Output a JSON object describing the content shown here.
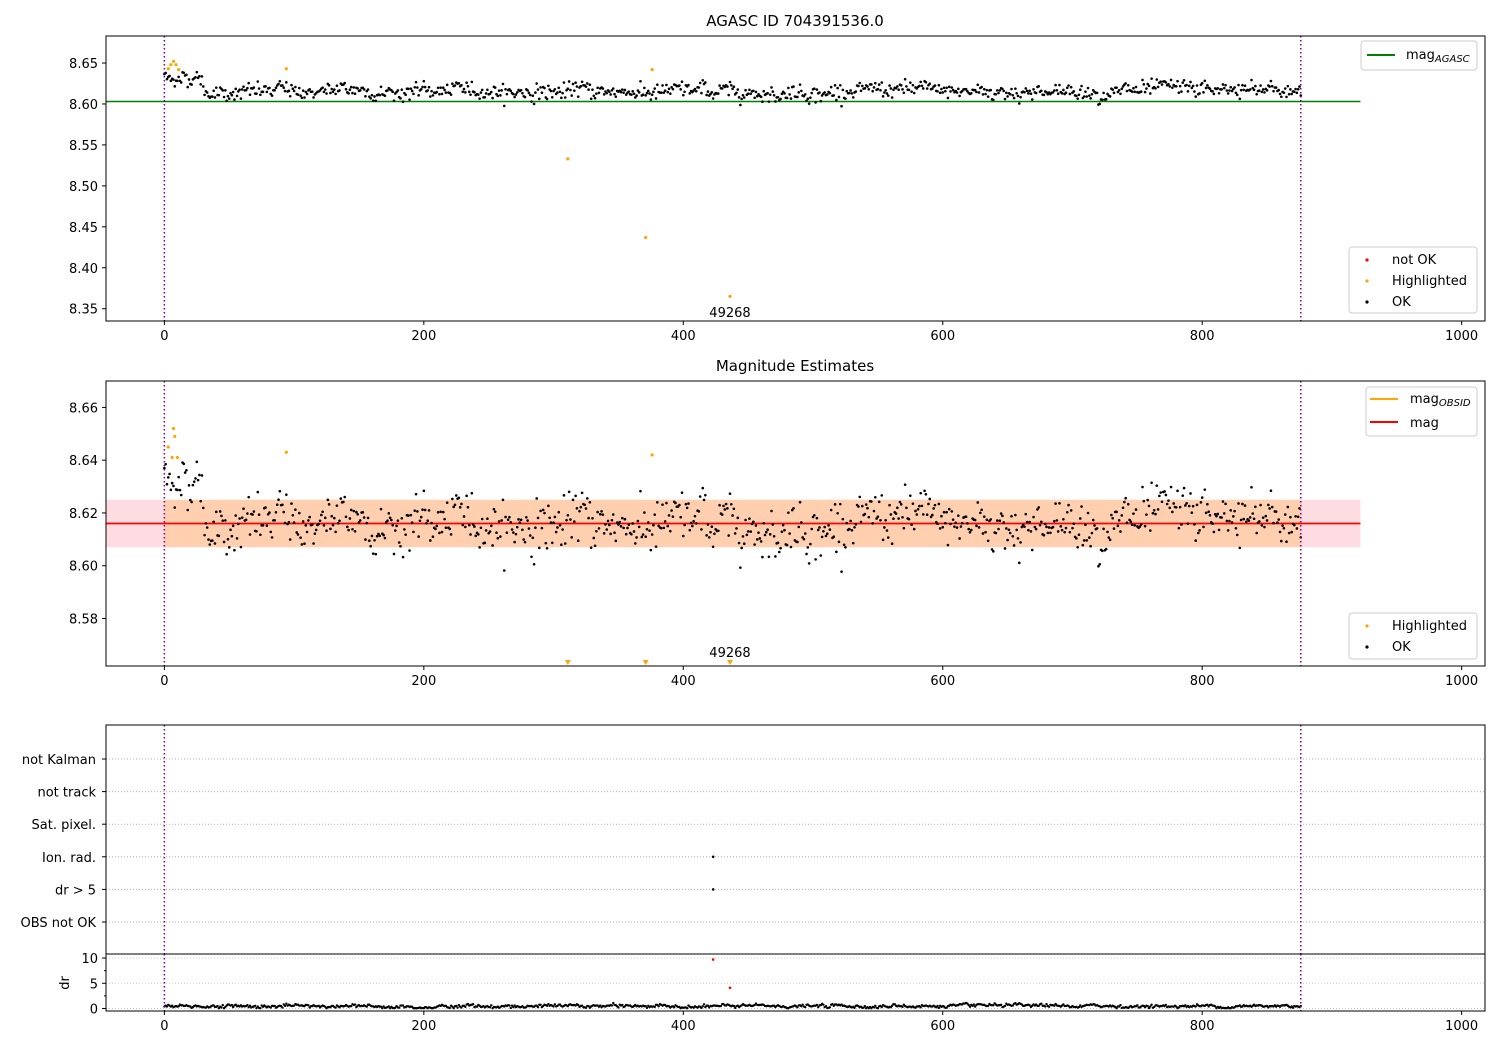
{
  "chart_data": [
    {
      "type": "scatter",
      "title": "AGASC ID 704391536.0",
      "xlim": [
        -45,
        1018
      ],
      "ylim": [
        8.335,
        8.683
      ],
      "xticks": [
        0,
        200,
        400,
        600,
        800,
        1000
      ],
      "yticks": [
        8.35,
        8.4,
        8.45,
        8.5,
        8.55,
        8.6,
        8.65
      ],
      "xticks_labels": [
        "0",
        "200",
        "400",
        "600",
        "800",
        "1000"
      ],
      "yticks_labels": [
        "8.35",
        "8.40",
        "8.45",
        "8.50",
        "8.55",
        "8.60",
        "8.65"
      ],
      "vlines": [
        0,
        876
      ],
      "hlines": [
        {
          "name": "mag_AGASC",
          "y": 8.603,
          "x": [
            -45,
            922
          ],
          "color": "#008000"
        }
      ],
      "ok_points": {
        "x_range": [
          0,
          876
        ],
        "mean": 8.615,
        "color": "#000000"
      },
      "highlighted": [
        {
          "x": 3,
          "y": 8.643
        },
        {
          "x": 5,
          "y": 8.648
        },
        {
          "x": 7,
          "y": 8.652
        },
        {
          "x": 9,
          "y": 8.648
        },
        {
          "x": 11,
          "y": 8.642
        },
        {
          "x": 94,
          "y": 8.643
        },
        {
          "x": 311,
          "y": 8.533
        },
        {
          "x": 371,
          "y": 8.437
        },
        {
          "x": 376,
          "y": 8.642
        },
        {
          "x": 436,
          "y": 8.365
        }
      ],
      "annotation": {
        "text": "49268",
        "x": 436,
        "y": 8.345
      },
      "legends": [
        {
          "position": "upper right",
          "entries": [
            {
              "label": "mag",
              "sub": "AGASC",
              "color": "#008000",
              "marker": "line"
            }
          ]
        },
        {
          "position": "lower right",
          "entries": [
            {
              "label": "not OK",
              "color": "#ff0000",
              "marker": "dot"
            },
            {
              "label": "Highlighted",
              "color": "#ffa500",
              "marker": "dot"
            },
            {
              "label": "OK",
              "color": "#000000",
              "marker": "dot"
            }
          ]
        }
      ]
    },
    {
      "type": "scatter",
      "title": "Magnitude Estimates",
      "xlim": [
        -45,
        1018
      ],
      "ylim": [
        8.562,
        8.67
      ],
      "xticks": [
        0,
        200,
        400,
        600,
        800,
        1000
      ],
      "yticks": [
        8.58,
        8.6,
        8.62,
        8.64,
        8.66
      ],
      "xticks_labels": [
        "0",
        "200",
        "400",
        "600",
        "800",
        "1000"
      ],
      "yticks_labels": [
        "8.58",
        "8.60",
        "8.62",
        "8.64",
        "8.66"
      ],
      "vlines": [
        0,
        876
      ],
      "hlines": [
        {
          "name": "mag",
          "y": 8.616,
          "x": [
            -45,
            922
          ],
          "color": "#ff0000"
        }
      ],
      "bands": [
        {
          "name": "mag_band",
          "y": [
            8.607,
            8.625
          ],
          "x": [
            -45,
            922
          ],
          "color": "#ffc0cb"
        },
        {
          "name": "mag_OBSID_band",
          "y": [
            8.607,
            8.625
          ],
          "x": [
            0,
            876
          ],
          "color": "#ffa500"
        }
      ],
      "ok_points": {
        "x_range": [
          0,
          876
        ],
        "mean": 8.616,
        "color": "#000000"
      },
      "highlighted": [
        {
          "x": 3,
          "y": 8.645
        },
        {
          "x": 6,
          "y": 8.641
        },
        {
          "x": 7,
          "y": 8.652
        },
        {
          "x": 8,
          "y": 8.649
        },
        {
          "x": 10,
          "y": 8.641
        },
        {
          "x": 94,
          "y": 8.643
        },
        {
          "x": 376,
          "y": 8.642
        }
      ],
      "clipped_markers": [
        {
          "x": 311
        },
        {
          "x": 371
        },
        {
          "x": 436
        }
      ],
      "annotation": {
        "text": "49268",
        "x": 436,
        "y": 8.565
      },
      "legends": [
        {
          "position": "upper right",
          "entries": [
            {
              "label": "mag",
              "sub": "OBSID",
              "color": "#ffa500",
              "marker": "line"
            },
            {
              "label": "mag",
              "sub": "",
              "color": "#ff0000",
              "marker": "line"
            }
          ]
        },
        {
          "position": "lower right",
          "entries": [
            {
              "label": "Highlighted",
              "color": "#ffa500",
              "marker": "dot"
            },
            {
              "label": "OK",
              "color": "#000000",
              "marker": "dot"
            }
          ]
        }
      ]
    },
    {
      "type": "scatter",
      "title": "",
      "xlim": [
        -45,
        1018
      ],
      "categories": [
        "not Kalman",
        "not track",
        "Sat. pixel.",
        "Ion. rad.",
        "dr > 5",
        "OBS not OK"
      ],
      "vlines": [
        0,
        876
      ],
      "flag_points": [
        {
          "category": "Ion. rad.",
          "x": 423
        },
        {
          "category": "dr > 5",
          "x": 423
        }
      ]
    },
    {
      "type": "scatter",
      "title": "",
      "ylabel": "dr",
      "xlim": [
        -45,
        1018
      ],
      "ylim": [
        -0.5,
        10.8
      ],
      "xticks": [
        0,
        200,
        400,
        600,
        800,
        1000
      ],
      "yticks": [
        0,
        5,
        10
      ],
      "xticks_labels": [
        "0",
        "200",
        "400",
        "600",
        "800",
        "1000"
      ],
      "yticks_labels": [
        "0",
        "5",
        "10"
      ],
      "vlines": [
        0,
        876
      ],
      "dr_points": {
        "x_range": [
          0,
          876
        ],
        "mean": 0.45,
        "color": "#000000"
      },
      "notok_points": [
        {
          "x": 423,
          "y": 9.7
        },
        {
          "x": 436,
          "y": 4.1
        }
      ]
    }
  ]
}
